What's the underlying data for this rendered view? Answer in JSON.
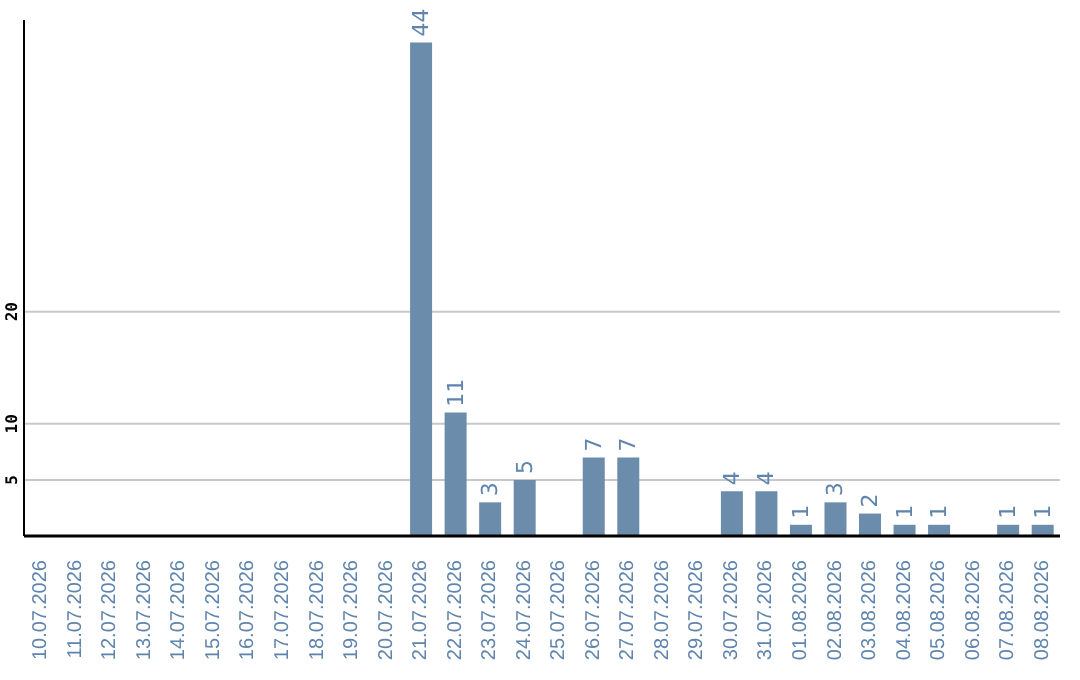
{
  "chart_data": {
    "type": "bar",
    "categories": [
      "10.07.2026",
      "11.07.2026",
      "12.07.2026",
      "13.07.2026",
      "14.07.2026",
      "15.07.2026",
      "16.07.2026",
      "17.07.2026",
      "18.07.2026",
      "19.07.2026",
      "20.07.2026",
      "21.07.2026",
      "22.07.2026",
      "23.07.2026",
      "24.07.2026",
      "25.07.2026",
      "26.07.2026",
      "27.07.2026",
      "28.07.2026",
      "29.07.2026",
      "30.07.2026",
      "31.07.2026",
      "01.08.2026",
      "02.08.2026",
      "03.08.2026",
      "04.08.2026",
      "05.08.2026",
      "06.08.2026",
      "07.08.2026",
      "08.08.2026"
    ],
    "values": [
      null,
      null,
      null,
      null,
      null,
      null,
      null,
      null,
      null,
      null,
      null,
      44,
      11,
      3,
      5,
      null,
      7,
      7,
      null,
      null,
      4,
      4,
      1,
      3,
      2,
      1,
      1,
      null,
      1,
      1
    ],
    "color": "#6b8cab",
    "ylim": [
      0,
      46
    ],
    "yticks": [
      5,
      10,
      20
    ],
    "grid": "y",
    "data_labels": true
  }
}
